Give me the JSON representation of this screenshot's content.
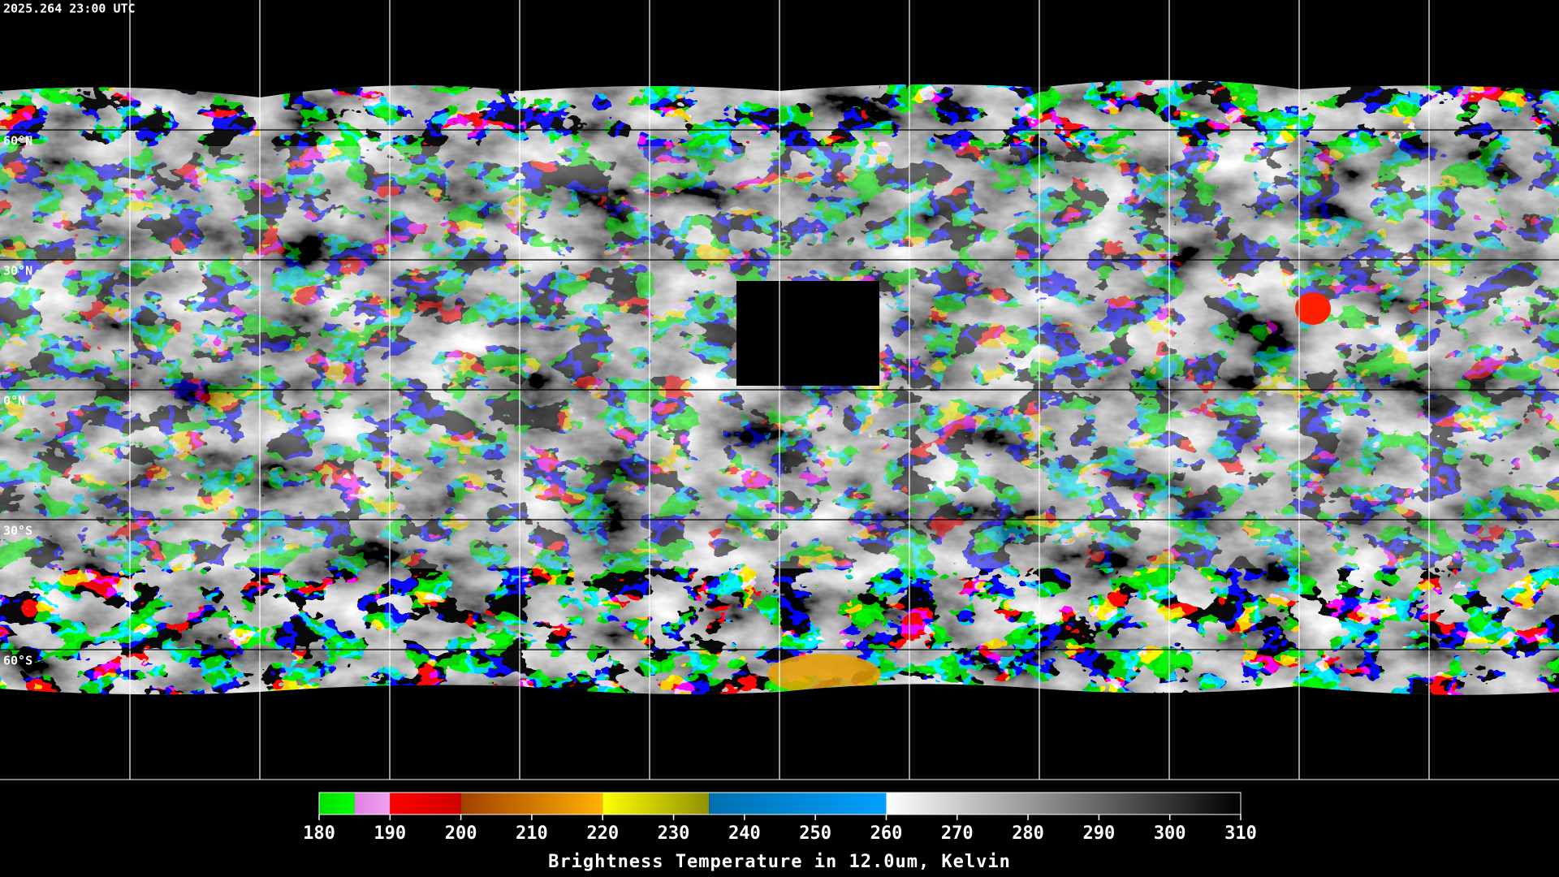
{
  "header": {
    "timestamp": "2025.264 23:00 UTC"
  },
  "map": {
    "lat_labels": [
      {
        "value": 60,
        "label": "60°N"
      },
      {
        "value": 30,
        "label": "30°N"
      },
      {
        "value": 0,
        "label": "0°N"
      },
      {
        "value": -30,
        "label": "30°S"
      },
      {
        "value": -60,
        "label": "60°S"
      }
    ]
  },
  "colorbar": {
    "title": "Brightness Temperature in 12.0um, Kelvin",
    "lim": [
      180,
      310
    ],
    "ticks": [
      180,
      190,
      200,
      210,
      220,
      230,
      240,
      250,
      260,
      270,
      280,
      290,
      300,
      310
    ],
    "segments": [
      {
        "range": [
          180,
          185
        ],
        "colors": [
          "#00e000",
          "#00ff00"
        ]
      },
      {
        "range": [
          185,
          190
        ],
        "colors": [
          "#e080e0",
          "#f0a0f0"
        ]
      },
      {
        "range": [
          190,
          200
        ],
        "colors": [
          "#ff0000",
          "#d00000"
        ]
      },
      {
        "range": [
          200,
          220
        ],
        "colors": [
          "#a04000",
          "#ffb000"
        ]
      },
      {
        "range": [
          220,
          235
        ],
        "colors": [
          "#ffff00",
          "#909000"
        ]
      },
      {
        "range": [
          235,
          260
        ],
        "colors": [
          "#0070b0",
          "#00a0ff"
        ]
      },
      {
        "range": [
          260,
          310
        ],
        "colors": [
          "#ffffff",
          "#000000"
        ]
      }
    ]
  }
}
